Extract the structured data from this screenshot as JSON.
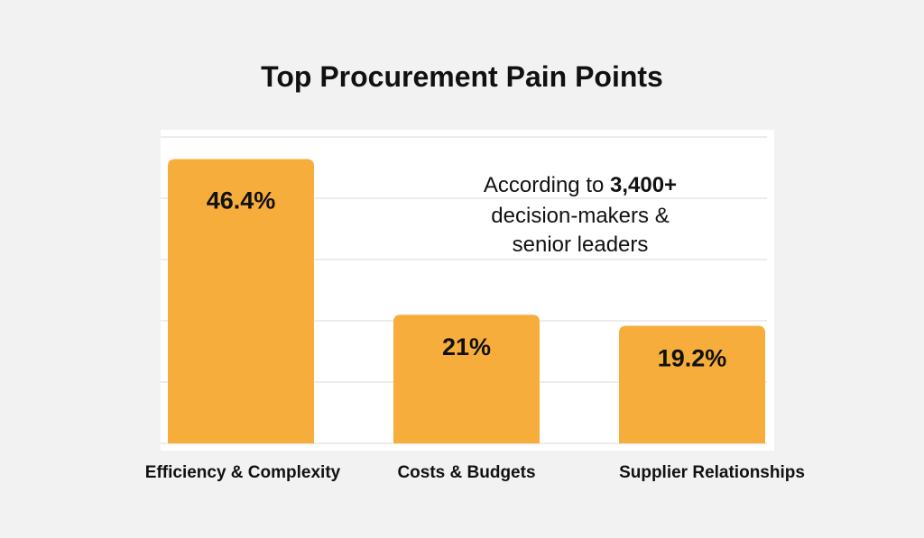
{
  "chart_data": {
    "type": "bar",
    "title": "Top Procurement Pain Points",
    "categories": [
      "Efficiency & Complexity",
      "Costs & Budgets",
      "Supplier Relationships"
    ],
    "values": [
      46.4,
      21,
      19.2
    ],
    "data_labels": [
      "46.4%",
      "21%",
      "19.2%"
    ],
    "xlabel": "",
    "ylabel": "",
    "ylim": [
      0,
      50
    ],
    "grid": true,
    "legend": "none",
    "annotation": {
      "prefix": "According to ",
      "emphasis": "3,400+",
      "line2": "decision-makers &",
      "line3": "senior leaders"
    }
  },
  "colors": {
    "bar": "#f7ad3b",
    "background": "#f2f2f2",
    "plot_background": "#ffffff",
    "gridline": "#d9d9d9",
    "text": "#111111"
  }
}
